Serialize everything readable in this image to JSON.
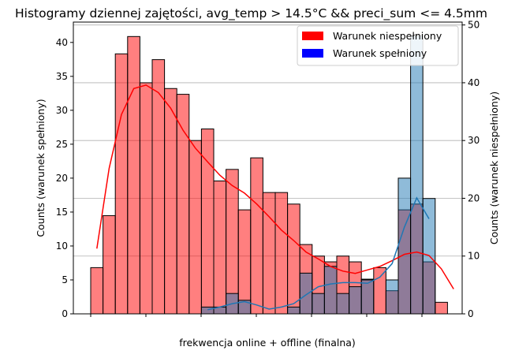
{
  "chart_data": {
    "type": "bar",
    "title": "Histogramy dziennej zajętości, avg_temp > 14.5°C && preci_sum <= 4.5mm",
    "xlabel": "frekwencja online + offline (finalna)",
    "ylabel_left": "Counts (warunek spełniony)",
    "ylabel_right": "Counts (warunek niespełniony)",
    "ylim_left": [
      0,
      43
    ],
    "ylim_right": [
      0,
      50.5
    ],
    "yticks_left": [
      0,
      5,
      10,
      15,
      20,
      25,
      30,
      35,
      40
    ],
    "yticks_right": [
      0,
      10,
      20,
      30,
      40,
      50
    ],
    "grid": "horizontal (right axis)",
    "legend_position": "top-right",
    "legend": [
      {
        "label": "Warunek niespełniony",
        "color": "#ff0000"
      },
      {
        "label": "Warunek spełniony",
        "color": "#0000ff"
      }
    ],
    "bin_count": 30,
    "series": [
      {
        "axis": "right",
        "color": "#ff0000",
        "values": [
          8,
          17,
          45,
          48,
          40,
          44,
          39,
          38,
          30,
          32,
          23,
          25,
          18,
          27,
          21,
          21,
          19,
          12,
          10,
          9,
          10,
          9,
          6,
          8,
          4,
          18,
          19,
          9,
          2,
          0
        ],
        "kde": [
          11.3,
          25.2,
          34.5,
          39.0,
          39.6,
          38.3,
          35.6,
          31.8,
          28.7,
          26.3,
          24.0,
          22.2,
          20.9,
          19.0,
          16.8,
          14.5,
          12.7,
          10.7,
          9.5,
          8.2,
          7.4,
          7.0,
          7.6,
          8.2,
          9.2,
          10.3,
          10.7,
          10.1,
          7.8,
          4.3
        ]
      },
      {
        "axis": "left",
        "color": "#1f77b4",
        "values": [
          0,
          0,
          0,
          0,
          0,
          0,
          0,
          0,
          0,
          1,
          1,
          3,
          2,
          0,
          0,
          0,
          1,
          6,
          3,
          7,
          3,
          4,
          5,
          0,
          5,
          20,
          41,
          17,
          0,
          0
        ],
        "kde": [
          0,
          0,
          0,
          0,
          0,
          0,
          0,
          0,
          0,
          0.6,
          1.0,
          1.5,
          1.8,
          1.3,
          0.7,
          1.0,
          1.5,
          2.8,
          4.0,
          4.4,
          4.6,
          4.6,
          4.5,
          5.4,
          7.4,
          12.8,
          17.1,
          14.0,
          0,
          0
        ]
      }
    ]
  }
}
